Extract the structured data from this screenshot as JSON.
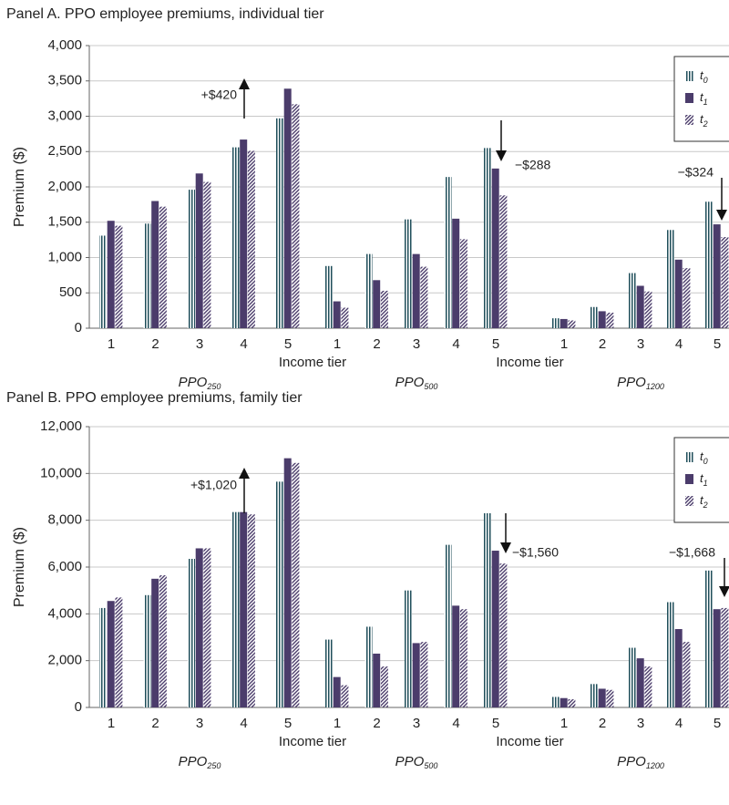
{
  "chart_data": [
    {
      "type": "bar",
      "title": "Panel A. PPO employee premiums, individual tier",
      "y_label": "Premium ($)",
      "x_label": "Income tier",
      "categories": [
        "1",
        "2",
        "3",
        "4",
        "5",
        "1",
        "2",
        "3",
        "4",
        "5",
        "1",
        "2",
        "3",
        "4",
        "5"
      ],
      "groups": [
        {
          "name": "PPO",
          "subscript": "250"
        },
        {
          "name": "PPO",
          "subscript": "500"
        },
        {
          "name": "PPO",
          "subscript": "1200"
        }
      ],
      "series": [
        {
          "name": "t",
          "subscript": "0",
          "color": "#1f4e5a",
          "pattern": "vertical",
          "values": [
            1310,
            1480,
            1960,
            2560,
            2970,
            880,
            1050,
            1540,
            2140,
            2550,
            140,
            300,
            780,
            1390,
            1790
          ]
        },
        {
          "name": "t",
          "subscript": "1",
          "color": "#4b3c6b",
          "pattern": "solid",
          "values": [
            1520,
            1800,
            2190,
            2670,
            3390,
            380,
            680,
            1050,
            1550,
            2260,
            130,
            240,
            600,
            970,
            1470
          ]
        },
        {
          "name": "t",
          "subscript": "2",
          "color": "#4b3c6b",
          "pattern": "diagonal",
          "values": [
            1450,
            1720,
            2070,
            2510,
            3170,
            290,
            530,
            870,
            1260,
            1880,
            110,
            220,
            520,
            850,
            1290
          ]
        }
      ],
      "ylim": [
        0,
        4000
      ],
      "yticks": [
        0,
        500,
        {
          "value": 1000,
          "label": "1,000"
        },
        {
          "value": 1500,
          "label": "1,500"
        },
        {
          "value": 2000,
          "label": "2,000"
        },
        {
          "value": 2500,
          "label": "2,500"
        },
        {
          "value": 3000,
          "label": "3,000"
        },
        {
          "value": 3500,
          "label": "3,500"
        },
        {
          "value": 4000,
          "label": "4,000"
        }
      ],
      "grid": true,
      "legend": "upper right",
      "annotations": [
        {
          "text": "+$420",
          "arrow": "up"
        },
        {
          "text": "−$288",
          "arrow": "down"
        },
        {
          "text": "−$324",
          "arrow": "down"
        }
      ]
    },
    {
      "type": "bar",
      "title": "Panel B. PPO employee premiums, family tier",
      "y_label": "Premium ($)",
      "x_label": "Income tier",
      "categories": [
        "1",
        "2",
        "3",
        "4",
        "5",
        "1",
        "2",
        "3",
        "4",
        "5",
        "1",
        "2",
        "3",
        "4",
        "5"
      ],
      "groups": [
        {
          "name": "PPO",
          "subscript": "250"
        },
        {
          "name": "PPO",
          "subscript": "500"
        },
        {
          "name": "PPO",
          "subscript": "1200"
        }
      ],
      "series": [
        {
          "name": "t",
          "subscript": "0",
          "color": "#1f4e5a",
          "pattern": "vertical",
          "values": [
            4250,
            4800,
            6350,
            8350,
            9650,
            2900,
            3450,
            5000,
            6950,
            8300,
            450,
            1000,
            2550,
            4500,
            5850
          ]
        },
        {
          "name": "t",
          "subscript": "1",
          "color": "#4b3c6b",
          "pattern": "solid",
          "values": [
            4550,
            5500,
            6800,
            8350,
            10650,
            1300,
            2300,
            2750,
            4350,
            6700,
            400,
            800,
            2100,
            3350,
            4200
          ]
        },
        {
          "name": "t",
          "subscript": "2",
          "color": "#4b3c6b",
          "pattern": "diagonal",
          "values": [
            4700,
            5650,
            6800,
            8250,
            10450,
            950,
            1750,
            2800,
            4200,
            6150,
            350,
            750,
            1750,
            2800,
            4250
          ]
        }
      ],
      "ylim": [
        0,
        12000
      ],
      "yticks": [
        0,
        {
          "value": 2000,
          "label": "2,000"
        },
        {
          "value": 4000,
          "label": "4,000"
        },
        {
          "value": 6000,
          "label": "6,000"
        },
        {
          "value": 8000,
          "label": "8,000"
        },
        {
          "value": 10000,
          "label": "10,000"
        },
        {
          "value": 12000,
          "label": "12,000"
        }
      ],
      "grid": true,
      "legend": "upper right",
      "annotations": [
        {
          "text": "+$1,020",
          "arrow": "up"
        },
        {
          "text": "−$1,560",
          "arrow": "down"
        },
        {
          "text": "−$1,668",
          "arrow": "down"
        }
      ]
    }
  ]
}
